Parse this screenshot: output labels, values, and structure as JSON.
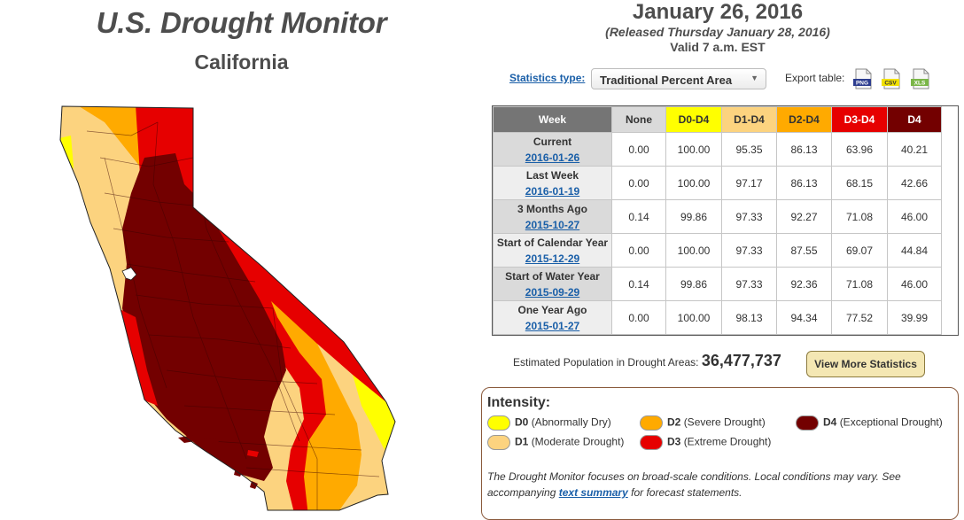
{
  "header": {
    "title": "U.S. Drought Monitor",
    "region": "California",
    "date": "January 26, 2016",
    "released": "(Released Thursday January 28, 2016)",
    "valid": "Valid 7 a.m. EST"
  },
  "controls": {
    "stats_label": "Statistics type:",
    "stats_value": "Traditional Percent Area",
    "export_label": "Export table:",
    "export_png": "PNG",
    "export_csv": "CSV",
    "export_xls": "XLS"
  },
  "table": {
    "headers": [
      "Week",
      "None",
      "D0-D4",
      "D1-D4",
      "D2-D4",
      "D3-D4",
      "D4"
    ],
    "rows": [
      {
        "label": "Current",
        "date": "2016-01-26",
        "values": [
          "0.00",
          "100.00",
          "95.35",
          "86.13",
          "63.96",
          "40.21"
        ]
      },
      {
        "label": "Last Week",
        "date": "2016-01-19",
        "values": [
          "0.00",
          "100.00",
          "97.17",
          "86.13",
          "68.15",
          "42.66"
        ]
      },
      {
        "label": "3 Months Ago",
        "date": "2015-10-27",
        "values": [
          "0.14",
          "99.86",
          "97.33",
          "92.27",
          "71.08",
          "46.00"
        ]
      },
      {
        "label": "Start of Calendar Year",
        "date": "2015-12-29",
        "values": [
          "0.00",
          "100.00",
          "97.33",
          "87.55",
          "69.07",
          "44.84"
        ]
      },
      {
        "label": "Start of Water Year",
        "date": "2015-09-29",
        "values": [
          "0.14",
          "99.86",
          "97.33",
          "92.36",
          "71.08",
          "46.00"
        ]
      },
      {
        "label": "One Year Ago",
        "date": "2015-01-27",
        "values": [
          "0.00",
          "100.00",
          "98.13",
          "94.34",
          "77.52",
          "39.99"
        ]
      }
    ]
  },
  "population": {
    "label": "Estimated Population in Drought Areas:",
    "value": "36,477,737"
  },
  "view_more": "View More Statistics",
  "legend": {
    "title": "Intensity:",
    "items": [
      {
        "code": "D0",
        "desc": "(Abnormally Dry)",
        "color": "#ffff00"
      },
      {
        "code": "D1",
        "desc": "(Moderate Drought)",
        "color": "#fcd37f"
      },
      {
        "code": "D2",
        "desc": "(Severe Drought)",
        "color": "#ffaa00"
      },
      {
        "code": "D3",
        "desc": "(Extreme Drought)",
        "color": "#e60000"
      },
      {
        "code": "D4",
        "desc": "(Exceptional Drought)",
        "color": "#730000"
      }
    ],
    "note_1": "The Drought Monitor focuses on broad-scale conditions. Local conditions may vary. See accompanying",
    "note_link": "text summary",
    "note_2": "for forecast statements."
  }
}
